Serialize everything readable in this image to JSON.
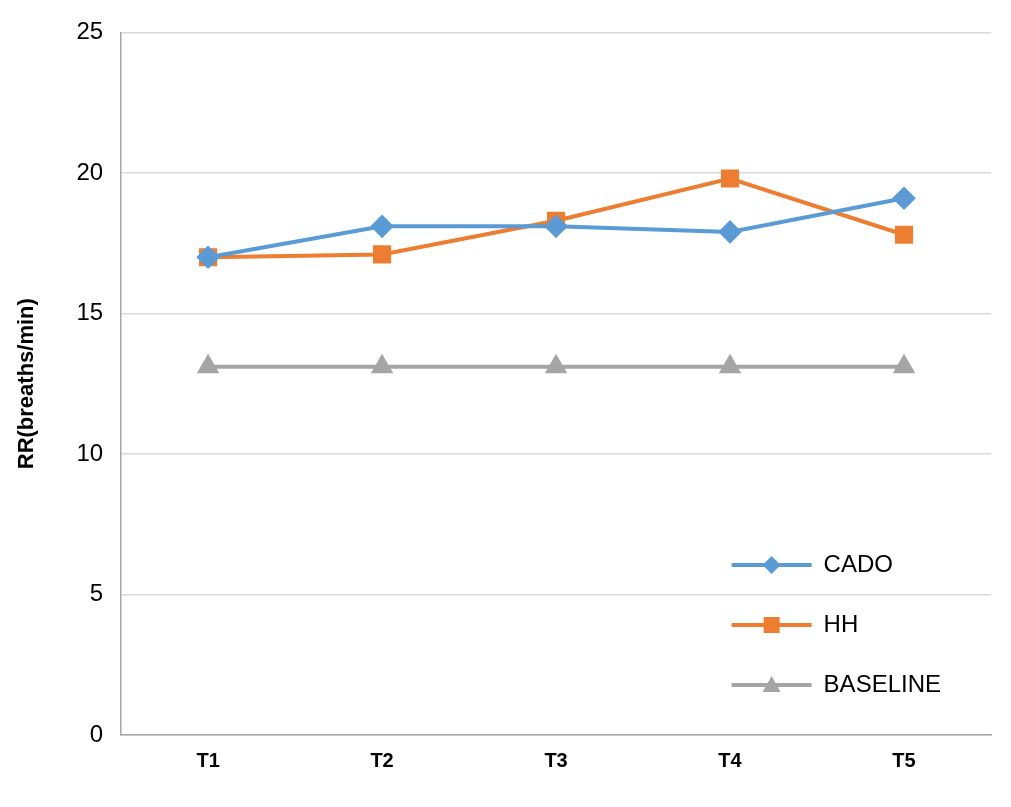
{
  "chart_data": {
    "type": "line",
    "y_label": "RR(breaths/min)",
    "categories": [
      "T1",
      "T2",
      "T3",
      "T4",
      "T5"
    ],
    "series": [
      {
        "name": "CADO",
        "color": "#5b9bd5",
        "marker": "diamond",
        "values": [
          17.0,
          18.1,
          18.1,
          17.9,
          19.1
        ]
      },
      {
        "name": "HH",
        "color": "#ed7d31",
        "marker": "square",
        "values": [
          17.0,
          17.1,
          18.3,
          19.8,
          17.8
        ]
      },
      {
        "name": "BASELINE",
        "color": "#a5a5a5",
        "marker": "triangle",
        "values": [
          13.1,
          13.1,
          13.1,
          13.1,
          13.1
        ]
      }
    ],
    "ylim": [
      0,
      25
    ],
    "yticks": [
      0,
      5,
      10,
      15,
      20,
      25
    ],
    "grid": true,
    "legend": "lower right"
  }
}
